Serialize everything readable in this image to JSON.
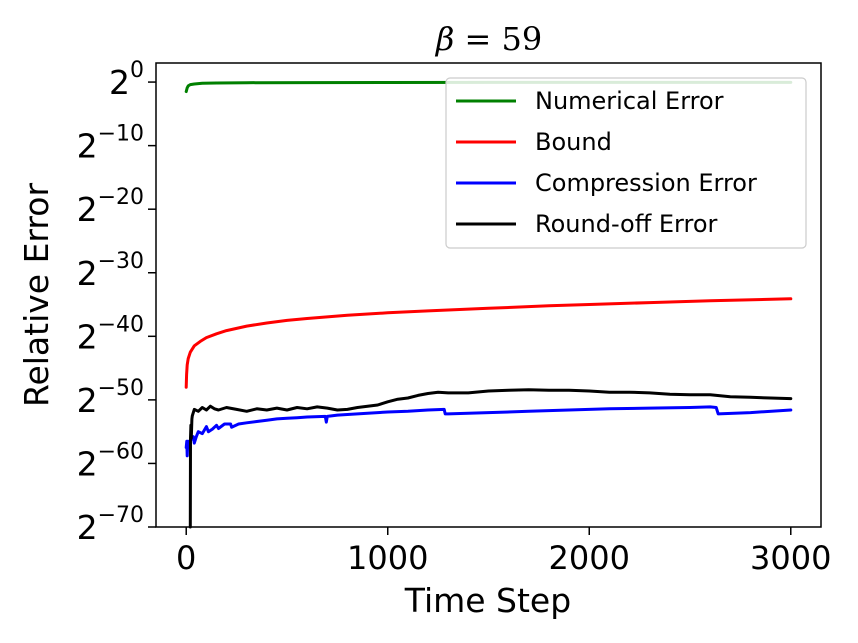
{
  "chart_data": {
    "type": "line",
    "title_symbol": "β",
    "title_rest": " = 59",
    "xlabel": "Time Step",
    "ylabel": "Relative Error",
    "xlim": [
      -150,
      3150
    ],
    "ylim": [
      -70,
      3
    ],
    "y_scale": "log2",
    "x_ticks": [
      0,
      1000,
      2000,
      3000
    ],
    "x_tick_labels": [
      "0",
      "1000",
      "2000",
      "3000"
    ],
    "y_ticks": [
      0,
      -10,
      -20,
      -30,
      -40,
      -50,
      -60,
      -70
    ],
    "y_tick_base": "2",
    "y_tick_exponents": [
      "0",
      "−10",
      "−20",
      "−30",
      "−40",
      "−50",
      "−60",
      "−70"
    ],
    "grid": false,
    "legend_position": "top-right",
    "series": [
      {
        "name": "Numerical Error",
        "color": "#008000",
        "x": [
          0,
          5,
          10,
          20,
          40,
          80,
          150,
          300,
          600,
          1000,
          1500,
          2000,
          2500,
          3000
        ],
        "y": [
          -1.5,
          -0.9,
          -0.6,
          -0.4,
          -0.3,
          -0.2,
          -0.15,
          -0.1,
          -0.08,
          -0.07,
          -0.06,
          -0.05,
          -0.05,
          -0.05
        ]
      },
      {
        "name": "Bound",
        "color": "#ff0000",
        "x": [
          0,
          2,
          5,
          10,
          20,
          40,
          70,
          100,
          150,
          200,
          300,
          400,
          500,
          600,
          800,
          1000,
          1200,
          1500,
          1800,
          2000,
          2300,
          2600,
          3000
        ],
        "y": [
          -48,
          -46,
          -44.5,
          -43.5,
          -42.5,
          -41.5,
          -40.8,
          -40.2,
          -39.6,
          -39.1,
          -38.4,
          -37.9,
          -37.5,
          -37.2,
          -36.7,
          -36.3,
          -36,
          -35.6,
          -35.2,
          -35,
          -34.7,
          -34.4,
          -34.1
        ]
      },
      {
        "name": "Compression Error",
        "color": "#0000ff",
        "x": [
          0,
          3,
          5,
          8,
          15,
          25,
          35,
          40,
          50,
          60,
          80,
          100,
          110,
          130,
          150,
          160,
          190,
          220,
          225,
          260,
          300,
          350,
          400,
          450,
          500,
          550,
          600,
          690,
          695,
          700,
          750,
          800,
          900,
          1000,
          1100,
          1200,
          1280,
          1285,
          1300,
          1500,
          1700,
          1900,
          2100,
          2300,
          2500,
          2600,
          2630,
          2640,
          2800,
          3000
        ],
        "y": [
          -57.5,
          -56.5,
          -58.8,
          -56.5,
          -56.6,
          -56.2,
          -55.8,
          -56.8,
          -55.8,
          -55,
          -55.3,
          -54.2,
          -55,
          -54.6,
          -54,
          -54.5,
          -53.8,
          -53.8,
          -54.3,
          -53.8,
          -53.6,
          -53.4,
          -53.2,
          -53,
          -52.9,
          -52.8,
          -52.7,
          -52.6,
          -53.5,
          -52.6,
          -52.4,
          -52.3,
          -52.1,
          -51.9,
          -51.8,
          -51.6,
          -51.5,
          -52.2,
          -52.2,
          -52,
          -51.8,
          -51.6,
          -51.4,
          -51.3,
          -51.2,
          -51.1,
          -51.2,
          -52.2,
          -52,
          -51.6
        ]
      },
      {
        "name": "Round-off Error",
        "color": "#000000",
        "x": [
          20,
          21,
          23,
          25,
          28,
          30,
          40,
          60,
          80,
          100,
          120,
          140,
          160,
          200,
          250,
          300,
          350,
          400,
          450,
          500,
          550,
          600,
          650,
          700,
          750,
          800,
          850,
          900,
          950,
          1000,
          1050,
          1100,
          1150,
          1200,
          1250,
          1300,
          1400,
          1500,
          1600,
          1700,
          1800,
          1900,
          2000,
          2100,
          2200,
          2300,
          2400,
          2500,
          2600,
          2700,
          2800,
          2900,
          3000
        ],
        "y": [
          -70,
          -56,
          -54,
          -56,
          -53,
          -52.5,
          -51.5,
          -51.8,
          -51.2,
          -51.6,
          -51,
          -51.4,
          -51.6,
          -51.2,
          -51.5,
          -51.8,
          -51.4,
          -51.6,
          -51.3,
          -51.6,
          -51.2,
          -51.4,
          -51.1,
          -51.3,
          -51.6,
          -51.5,
          -51.2,
          -51,
          -50.8,
          -50.3,
          -49.9,
          -49.7,
          -49.3,
          -49,
          -48.8,
          -48.9,
          -48.9,
          -48.6,
          -48.5,
          -48.4,
          -48.5,
          -48.5,
          -48.6,
          -48.8,
          -48.8,
          -48.9,
          -49.1,
          -49.2,
          -49.2,
          -49.5,
          -49.6,
          -49.7,
          -49.8
        ]
      }
    ]
  }
}
